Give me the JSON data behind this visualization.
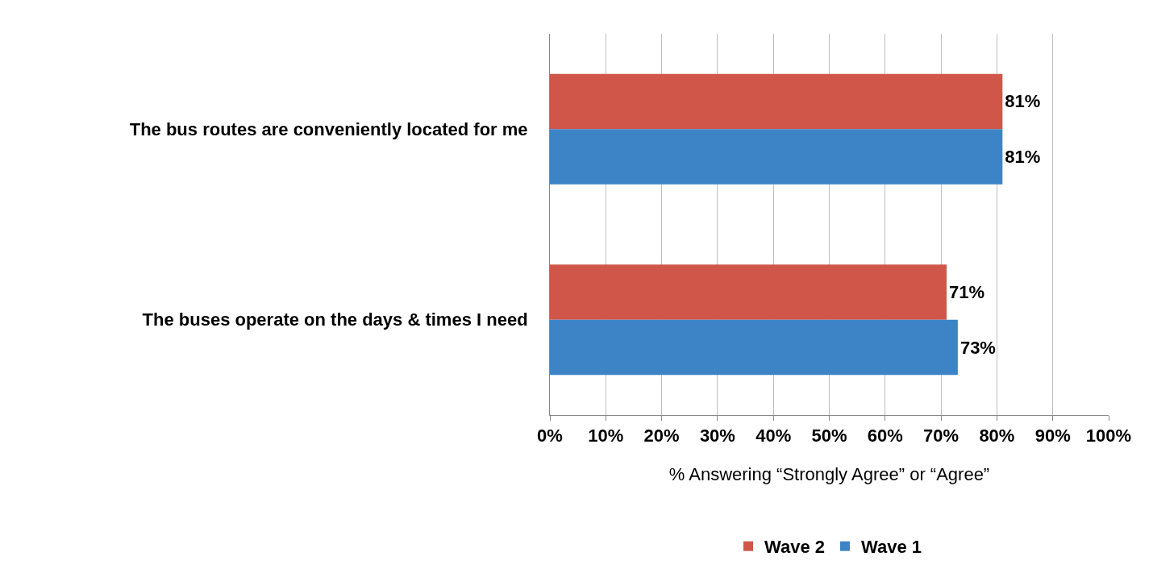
{
  "chart_data": {
    "type": "bar",
    "orientation": "horizontal",
    "xlabel": "% Answering “Strongly Agree” or “Agree”",
    "categories": [
      "The bus routes are conveniently located for me",
      "The buses operate on the days & times I need"
    ],
    "series": [
      {
        "name": "Wave 2",
        "color": "#d0564a",
        "values": [
          81,
          71
        ],
        "value_labels": [
          "81%",
          "71%"
        ]
      },
      {
        "name": "Wave 1",
        "color": "#3d84c6",
        "values": [
          81,
          73
        ],
        "value_labels": [
          "81%",
          "73%"
        ]
      }
    ],
    "xlim": [
      0,
      100
    ],
    "xticks": [
      {
        "value": 0,
        "label": "0%"
      },
      {
        "value": 10,
        "label": "10%"
      },
      {
        "value": 20,
        "label": "20%"
      },
      {
        "value": 30,
        "label": "30%"
      },
      {
        "value": 40,
        "label": "40%"
      },
      {
        "value": 50,
        "label": "50%"
      },
      {
        "value": 60,
        "label": "60%"
      },
      {
        "value": 70,
        "label": "70%"
      },
      {
        "value": 80,
        "label": "80%"
      },
      {
        "value": 90,
        "label": "90%"
      },
      {
        "value": 100,
        "label": "100%"
      }
    ],
    "grid": "x",
    "legend": "bottom"
  }
}
